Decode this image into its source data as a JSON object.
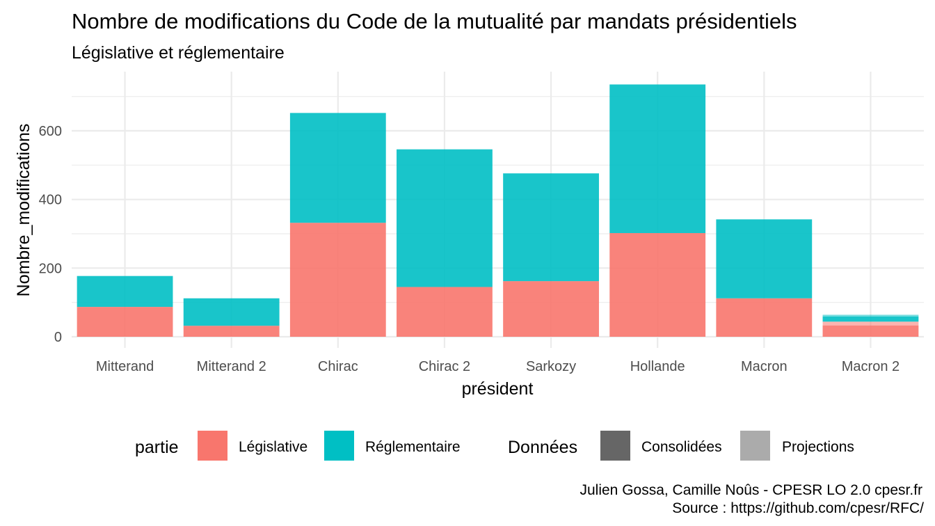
{
  "chart_data": {
    "type": "bar",
    "stacked": true,
    "title": "Nombre de modifications du Code de la mutualité par mandats présidentiels",
    "subtitle": "Législative et réglementaire",
    "xlabel": "président",
    "ylabel": "Nombre_modifications",
    "ylim": [
      0,
      740
    ],
    "yticks": [
      0,
      200,
      400,
      600
    ],
    "grid": true,
    "categories": [
      "Mitterand",
      "Mitterand 2",
      "Chirac",
      "Chirac 2",
      "Sarkozy",
      "Hollande",
      "Macron",
      "Macron 2"
    ],
    "series": [
      {
        "name": "Législative",
        "values": [
          87,
          32,
          332,
          145,
          162,
          302,
          112,
          33
        ]
      },
      {
        "name": "Réglementaire",
        "values": [
          90,
          80,
          320,
          401,
          314,
          433,
          230,
          15
        ]
      }
    ],
    "projections": {
      "category": "Macron 2",
      "Législative": 11,
      "Réglementaire": 5
    },
    "legend": {
      "position": "bottom",
      "partie_title": "partie",
      "donnees_title": "Données",
      "items_partie": [
        {
          "label": "Législative",
          "color": "#F8766D"
        },
        {
          "label": "Réglementaire",
          "color": "#00BFC4"
        }
      ],
      "items_donnees": [
        {
          "label": "Consolidées",
          "color": "#666666"
        },
        {
          "label": "Projections",
          "color": "#ababab"
        }
      ]
    },
    "caption_line1": "Julien Gossa, Camille Noûs - CPESR LO 2.0 cpesr.fr",
    "caption_line2": "Source : https://github.com/cpesr/RFC/",
    "colors": {
      "legislative": "#F8766D",
      "reglementaire": "#00BFC4",
      "grid": "#ebebeb"
    }
  }
}
